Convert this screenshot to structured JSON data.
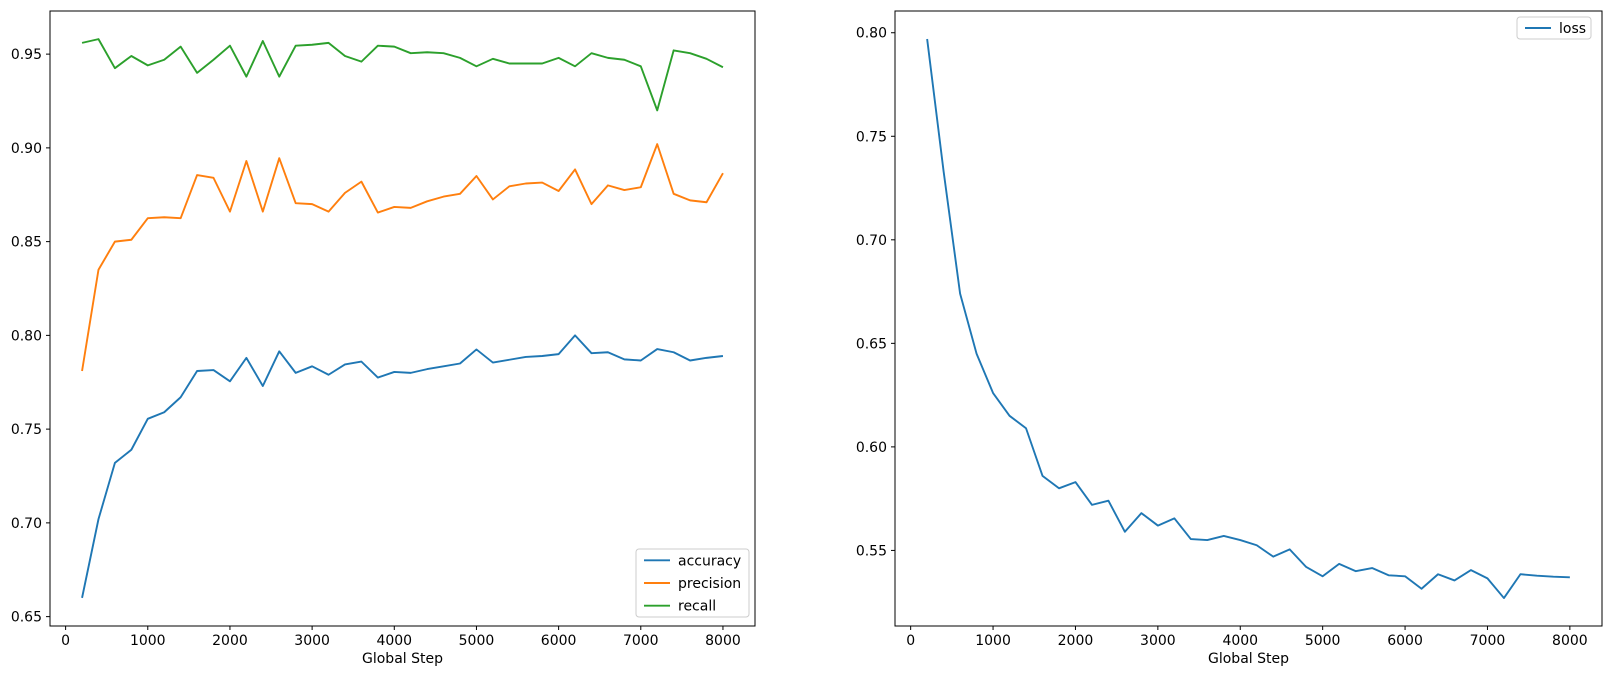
{
  "figure": {
    "background": "#ffffff",
    "xlabel": "Global Step"
  },
  "chart_data": [
    {
      "id": "metrics",
      "type": "line",
      "title": "",
      "xlabel": "Global Step",
      "ylabel": "",
      "grid": false,
      "xlim": [
        -190,
        8390
      ],
      "ylim": [
        0.645,
        0.973
      ],
      "x_tick_values": [
        0,
        1000,
        2000,
        3000,
        4000,
        5000,
        6000,
        7000,
        8000
      ],
      "x_tick_labels": [
        "0",
        "1000",
        "2000",
        "3000",
        "4000",
        "5000",
        "6000",
        "7000",
        "8000"
      ],
      "y_tick_values": [
        0.65,
        0.7,
        0.75,
        0.8,
        0.85,
        0.9,
        0.95
      ],
      "y_tick_labels": [
        "0.65",
        "0.70",
        "0.75",
        "0.80",
        "0.85",
        "0.90",
        "0.95"
      ],
      "legend_position": "lower right",
      "x": [
        200,
        400,
        600,
        800,
        1000,
        1200,
        1400,
        1600,
        1800,
        2000,
        2200,
        2400,
        2600,
        2800,
        3000,
        3200,
        3400,
        3600,
        3800,
        4000,
        4200,
        4400,
        4600,
        4800,
        5000,
        5200,
        5400,
        5600,
        5800,
        6000,
        6200,
        6400,
        6600,
        6800,
        7000,
        7200,
        7400,
        7600,
        7800,
        8000
      ],
      "series": [
        {
          "name": "accuracy",
          "color": "#1f77b4",
          "values": [
            0.66,
            0.702,
            0.732,
            0.739,
            0.7555,
            0.759,
            0.767,
            0.781,
            0.7815,
            0.7755,
            0.788,
            0.773,
            0.7915,
            0.78,
            0.7835,
            0.779,
            0.7845,
            0.786,
            0.7775,
            0.7805,
            0.78,
            0.782,
            0.7835,
            0.785,
            0.7925,
            0.7855,
            0.787,
            0.7885,
            0.789,
            0.79,
            0.8,
            0.7905,
            0.791,
            0.7872,
            0.7866,
            0.7927,
            0.791,
            0.7866,
            0.788,
            0.789
          ]
        },
        {
          "name": "precision",
          "color": "#ff7f0e",
          "values": [
            0.781,
            0.835,
            0.85,
            0.851,
            0.8625,
            0.863,
            0.8625,
            0.8855,
            0.884,
            0.866,
            0.893,
            0.866,
            0.8945,
            0.8705,
            0.87,
            0.866,
            0.876,
            0.882,
            0.8655,
            0.8685,
            0.868,
            0.8715,
            0.874,
            0.8755,
            0.885,
            0.8725,
            0.8795,
            0.881,
            0.8815,
            0.877,
            0.8885,
            0.87,
            0.88,
            0.8775,
            0.879,
            0.902,
            0.8755,
            0.872,
            0.871,
            0.8865
          ]
        },
        {
          "name": "recall",
          "color": "#2ca02c",
          "values": [
            0.956,
            0.958,
            0.9425,
            0.949,
            0.944,
            0.947,
            0.954,
            0.94,
            0.947,
            0.9545,
            0.938,
            0.957,
            0.938,
            0.9545,
            0.955,
            0.956,
            0.949,
            0.946,
            0.9545,
            0.954,
            0.9505,
            0.951,
            0.9505,
            0.948,
            0.9435,
            0.9475,
            0.945,
            0.945,
            0.945,
            0.948,
            0.9435,
            0.9505,
            0.948,
            0.947,
            0.9435,
            0.92,
            0.952,
            0.9505,
            0.9475,
            0.943
          ]
        }
      ]
    },
    {
      "id": "loss",
      "type": "line",
      "title": "",
      "xlabel": "Global Step",
      "ylabel": "",
      "grid": false,
      "xlim": [
        -190,
        8390
      ],
      "ylim": [
        0.5135,
        0.8105
      ],
      "x_tick_values": [
        0,
        1000,
        2000,
        3000,
        4000,
        5000,
        6000,
        7000,
        8000
      ],
      "x_tick_labels": [
        "0",
        "1000",
        "2000",
        "3000",
        "4000",
        "5000",
        "6000",
        "7000",
        "8000"
      ],
      "y_tick_values": [
        0.55,
        0.6,
        0.65,
        0.7,
        0.75,
        0.8
      ],
      "y_tick_labels": [
        "0.55",
        "0.60",
        "0.65",
        "0.70",
        "0.75",
        "0.80"
      ],
      "legend_position": "upper right",
      "x": [
        200,
        400,
        600,
        800,
        1000,
        1200,
        1400,
        1600,
        1800,
        2000,
        2200,
        2400,
        2600,
        2800,
        3000,
        3200,
        3400,
        3600,
        3800,
        4000,
        4200,
        4400,
        4600,
        4800,
        5000,
        5200,
        5400,
        5600,
        5800,
        6000,
        6200,
        6400,
        6600,
        6800,
        7000,
        7200,
        7400,
        7600,
        7800,
        8000
      ],
      "series": [
        {
          "name": "loss",
          "color": "#1f77b4",
          "values": [
            0.797,
            0.733,
            0.674,
            0.645,
            0.626,
            0.615,
            0.609,
            0.586,
            0.58,
            0.583,
            0.572,
            0.574,
            0.559,
            0.568,
            0.562,
            0.5655,
            0.5555,
            0.555,
            0.557,
            0.555,
            0.5525,
            0.547,
            0.5505,
            0.542,
            0.5375,
            0.5435,
            0.54,
            0.5415,
            0.538,
            0.5375,
            0.5315,
            0.5385,
            0.5355,
            0.5405,
            0.5365,
            0.527,
            0.5385,
            0.5378,
            0.5373,
            0.537
          ]
        }
      ]
    }
  ],
  "style": {
    "spine_color": "#000000",
    "tick_color": "#000000",
    "legend_border_color": "#cccccc",
    "legend_background": "#ffffff"
  }
}
